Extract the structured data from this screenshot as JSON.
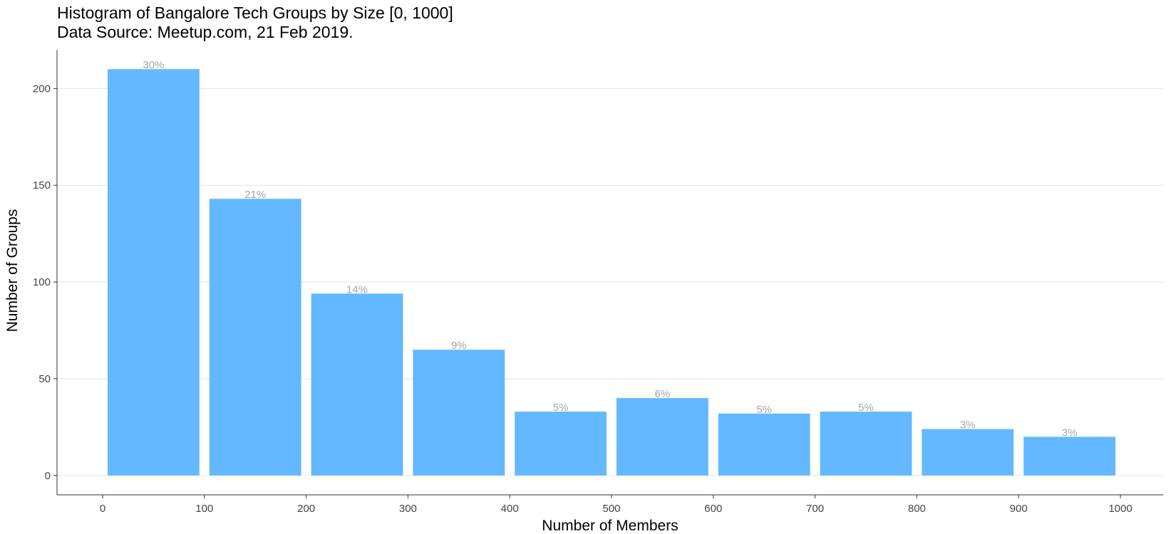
{
  "chart_data": {
    "type": "bar",
    "title": "Histogram of Bangalore Tech Groups by Size [0, 1000]",
    "subtitle": "Data Source: Meetup.com, 21 Feb 2019.",
    "xlabel": "Number of Members",
    "ylabel": "Number of Groups",
    "bins": [
      {
        "start": 0,
        "end": 100,
        "count": 210,
        "label": "30%"
      },
      {
        "start": 100,
        "end": 200,
        "count": 143,
        "label": "21%"
      },
      {
        "start": 200,
        "end": 300,
        "count": 94,
        "label": "14%"
      },
      {
        "start": 300,
        "end": 400,
        "count": 65,
        "label": "9%"
      },
      {
        "start": 400,
        "end": 500,
        "count": 33,
        "label": "5%"
      },
      {
        "start": 500,
        "end": 600,
        "count": 40,
        "label": "6%"
      },
      {
        "start": 600,
        "end": 700,
        "count": 32,
        "label": "5%"
      },
      {
        "start": 700,
        "end": 800,
        "count": 33,
        "label": "5%"
      },
      {
        "start": 800,
        "end": 900,
        "count": 24,
        "label": "3%"
      },
      {
        "start": 900,
        "end": 1000,
        "count": 20,
        "label": "3%"
      }
    ],
    "xticks": [
      0,
      100,
      200,
      300,
      400,
      500,
      600,
      700,
      800,
      900,
      1000
    ],
    "yticks": [
      0,
      50,
      100,
      150,
      200
    ],
    "xlim": [
      -45,
      1045
    ],
    "ylim": [
      -10,
      220
    ],
    "bar_color": "#63b8ff",
    "grid": "horizontal"
  }
}
